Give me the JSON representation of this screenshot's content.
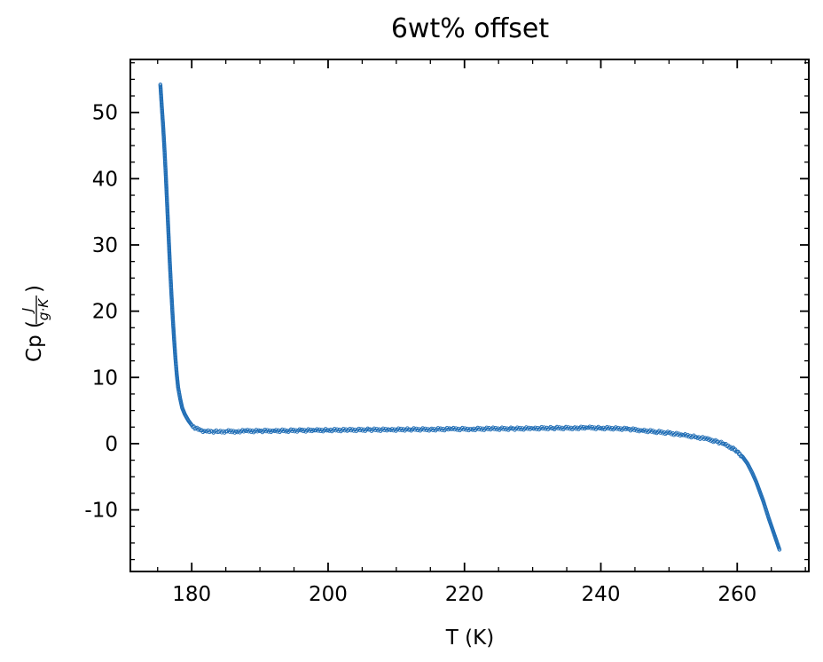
{
  "chart_data": {
    "type": "scatter",
    "title": "6wt% offset",
    "xlabel": "T (K)",
    "ylabel_prefix": "Cp (",
    "ylabel_suffix": ")",
    "ylabel_frac_num": "J",
    "ylabel_frac_den": "g·K",
    "xlim": [
      171,
      270.5
    ],
    "ylim": [
      -19.3,
      58
    ],
    "x_ticks": [
      180,
      200,
      220,
      240,
      260
    ],
    "x_tick_labels": [
      "180",
      "200",
      "220",
      "240",
      "260"
    ],
    "y_ticks": [
      -10,
      0,
      10,
      20,
      30,
      40,
      50
    ],
    "y_tick_labels": [
      "-10",
      "0",
      "10",
      "20",
      "30",
      "40",
      "50"
    ],
    "x_minor_step": 5,
    "y_minor_step": 2.5,
    "grid": false,
    "marker_color": "#1f6db5",
    "series": [
      {
        "x": [
          175.4,
          175.6,
          175.8,
          176.0,
          176.2,
          176.4,
          176.6,
          176.8,
          177.0,
          177.2,
          177.4,
          177.6,
          177.8,
          178.0,
          178.3,
          178.6,
          179.0,
          179.5,
          180.0,
          180.6,
          181.3,
          182.0,
          183.0,
          184.0,
          185.0,
          186.5,
          188.0,
          190.0,
          192.0,
          194.0,
          196.0,
          198.0,
          200.0,
          203.0,
          206.0,
          209.0,
          212.0,
          215.0,
          218.0,
          221.0,
          224.0,
          227.0,
          230.0,
          233.0,
          236.0,
          238.0,
          240.0,
          242.0,
          244.0,
          246.0,
          248.0,
          250.0,
          252.0,
          254.0,
          255.5,
          257.0,
          258.0,
          259.0,
          260.0,
          260.8,
          261.5,
          262.2,
          262.8,
          263.3,
          263.8,
          264.2,
          264.6,
          265.0,
          265.4,
          265.8,
          266.2
        ],
        "y": [
          54.2,
          51.0,
          48.0,
          44.5,
          40.5,
          36.0,
          31.5,
          27.0,
          23.0,
          19.3,
          16.0,
          13.0,
          10.5,
          8.5,
          6.8,
          5.4,
          4.4,
          3.5,
          2.8,
          2.3,
          2.0,
          1.9,
          1.85,
          1.8,
          1.85,
          1.85,
          1.9,
          1.9,
          1.95,
          1.95,
          2.0,
          2.0,
          2.05,
          2.05,
          2.1,
          2.1,
          2.15,
          2.15,
          2.2,
          2.2,
          2.25,
          2.25,
          2.3,
          2.35,
          2.35,
          2.4,
          2.35,
          2.3,
          2.2,
          2.0,
          1.8,
          1.6,
          1.3,
          1.0,
          0.7,
          0.3,
          0.0,
          -0.5,
          -1.2,
          -2.0,
          -3.0,
          -4.4,
          -5.8,
          -7.2,
          -8.6,
          -9.9,
          -11.2,
          -12.4,
          -13.6,
          -14.8,
          -16.0
        ]
      }
    ]
  }
}
